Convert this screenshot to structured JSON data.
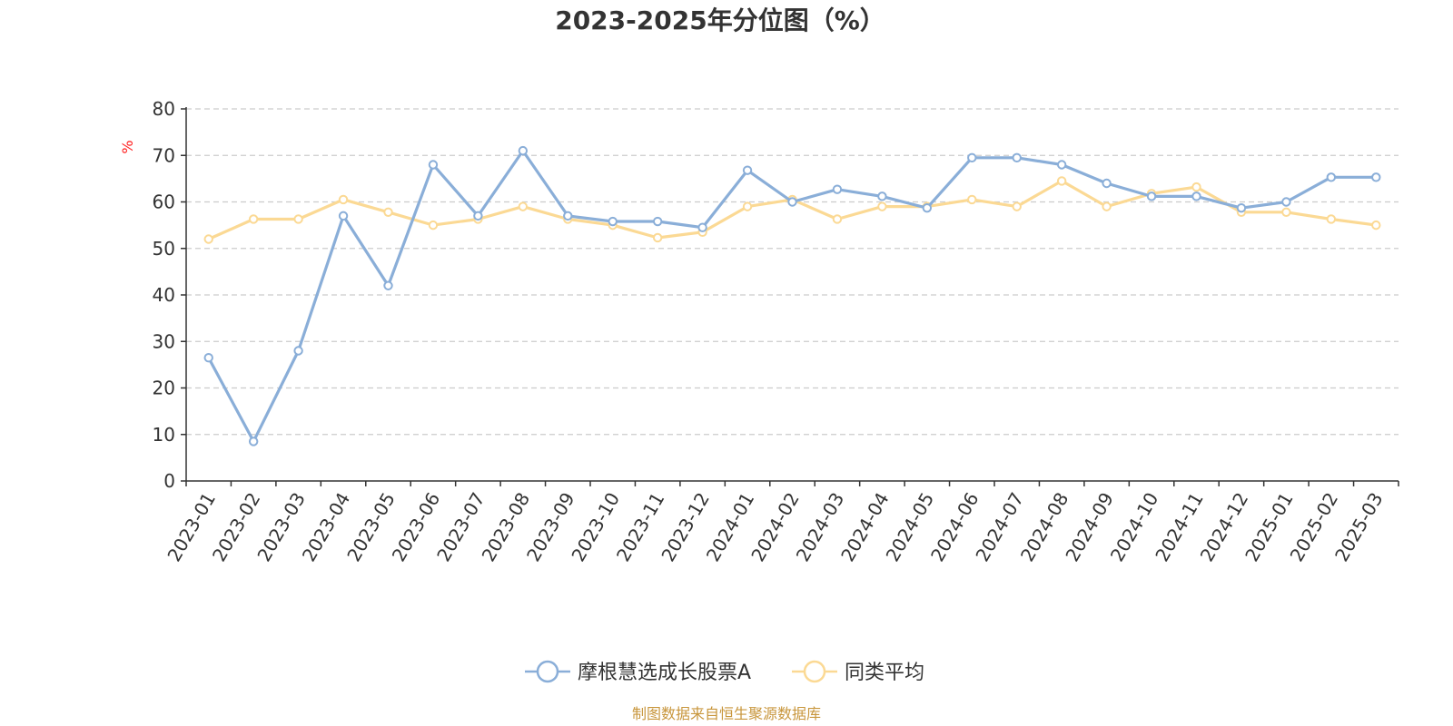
{
  "chart_data": {
    "type": "line",
    "title": "2023-2025年分位图（%）",
    "ylabel": "%",
    "ylim": [
      0,
      80
    ],
    "yticks": [
      0,
      10,
      20,
      30,
      40,
      50,
      60,
      70,
      80
    ],
    "grid": true,
    "legend_position": "bottom-center",
    "categories": [
      "2023-01",
      "2023-02",
      "2023-03",
      "2023-04",
      "2023-05",
      "2023-06",
      "2023-07",
      "2023-08",
      "2023-09",
      "2023-10",
      "2023-11",
      "2023-12",
      "2024-01",
      "2024-02",
      "2024-03",
      "2024-04",
      "2024-05",
      "2024-06",
      "2024-07",
      "2024-08",
      "2024-09",
      "2024-10",
      "2024-11",
      "2024-12",
      "2025-01",
      "2025-02",
      "2025-03"
    ],
    "series": [
      {
        "name": "摩根慧选成长股票A",
        "color": "#8aaed8",
        "values": [
          26.5,
          8.5,
          28.0,
          57.0,
          42.0,
          68.0,
          57.0,
          71.0,
          57.0,
          55.8,
          55.8,
          54.5,
          66.8,
          60.0,
          62.7,
          61.2,
          58.7,
          69.5,
          69.5,
          68.0,
          64.0,
          61.2,
          61.2,
          58.7,
          60.0,
          65.3,
          65.3
        ]
      },
      {
        "name": "同类平均",
        "color": "#fbd994",
        "values": [
          52.0,
          56.3,
          56.3,
          60.5,
          57.8,
          55.0,
          56.3,
          59.0,
          56.3,
          55.0,
          52.3,
          53.5,
          59.0,
          60.5,
          56.3,
          59.0,
          59.0,
          60.5,
          59.0,
          64.5,
          59.0,
          61.8,
          63.2,
          57.8,
          57.8,
          56.3,
          55.0
        ]
      }
    ]
  },
  "source_note": "制图数据来自恒生聚源数据库"
}
